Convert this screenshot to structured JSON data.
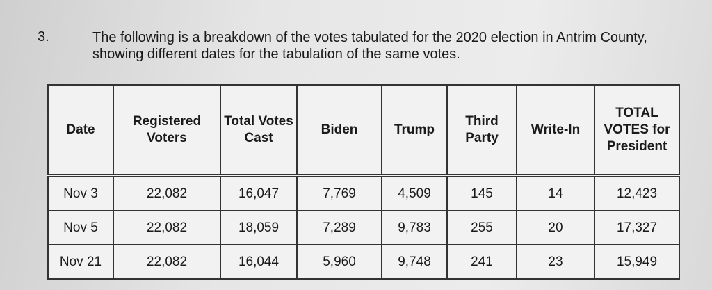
{
  "item": {
    "number": "3.",
    "text": "The following is a breakdown of the votes tabulated for the 2020 election in Antrim County, showing different dates for the tabulation of the same votes."
  },
  "table": {
    "header": [
      "Date",
      "Registered Voters",
      "Total Votes Cast",
      "Biden",
      "Trump",
      "Third Party",
      "Write-In",
      "TOTAL VOTES for President"
    ],
    "rows": [
      [
        "Nov 3",
        "22,082",
        "16,047",
        "7,769",
        "4,509",
        "145",
        "14",
        "12,423"
      ],
      [
        "Nov 5",
        "22,082",
        "18,059",
        "7,289",
        "9,783",
        "255",
        "20",
        "17,327"
      ],
      [
        "Nov 21",
        "22,082",
        "16,044",
        "5,960",
        "9,748",
        "241",
        "23",
        "15,949"
      ]
    ]
  }
}
